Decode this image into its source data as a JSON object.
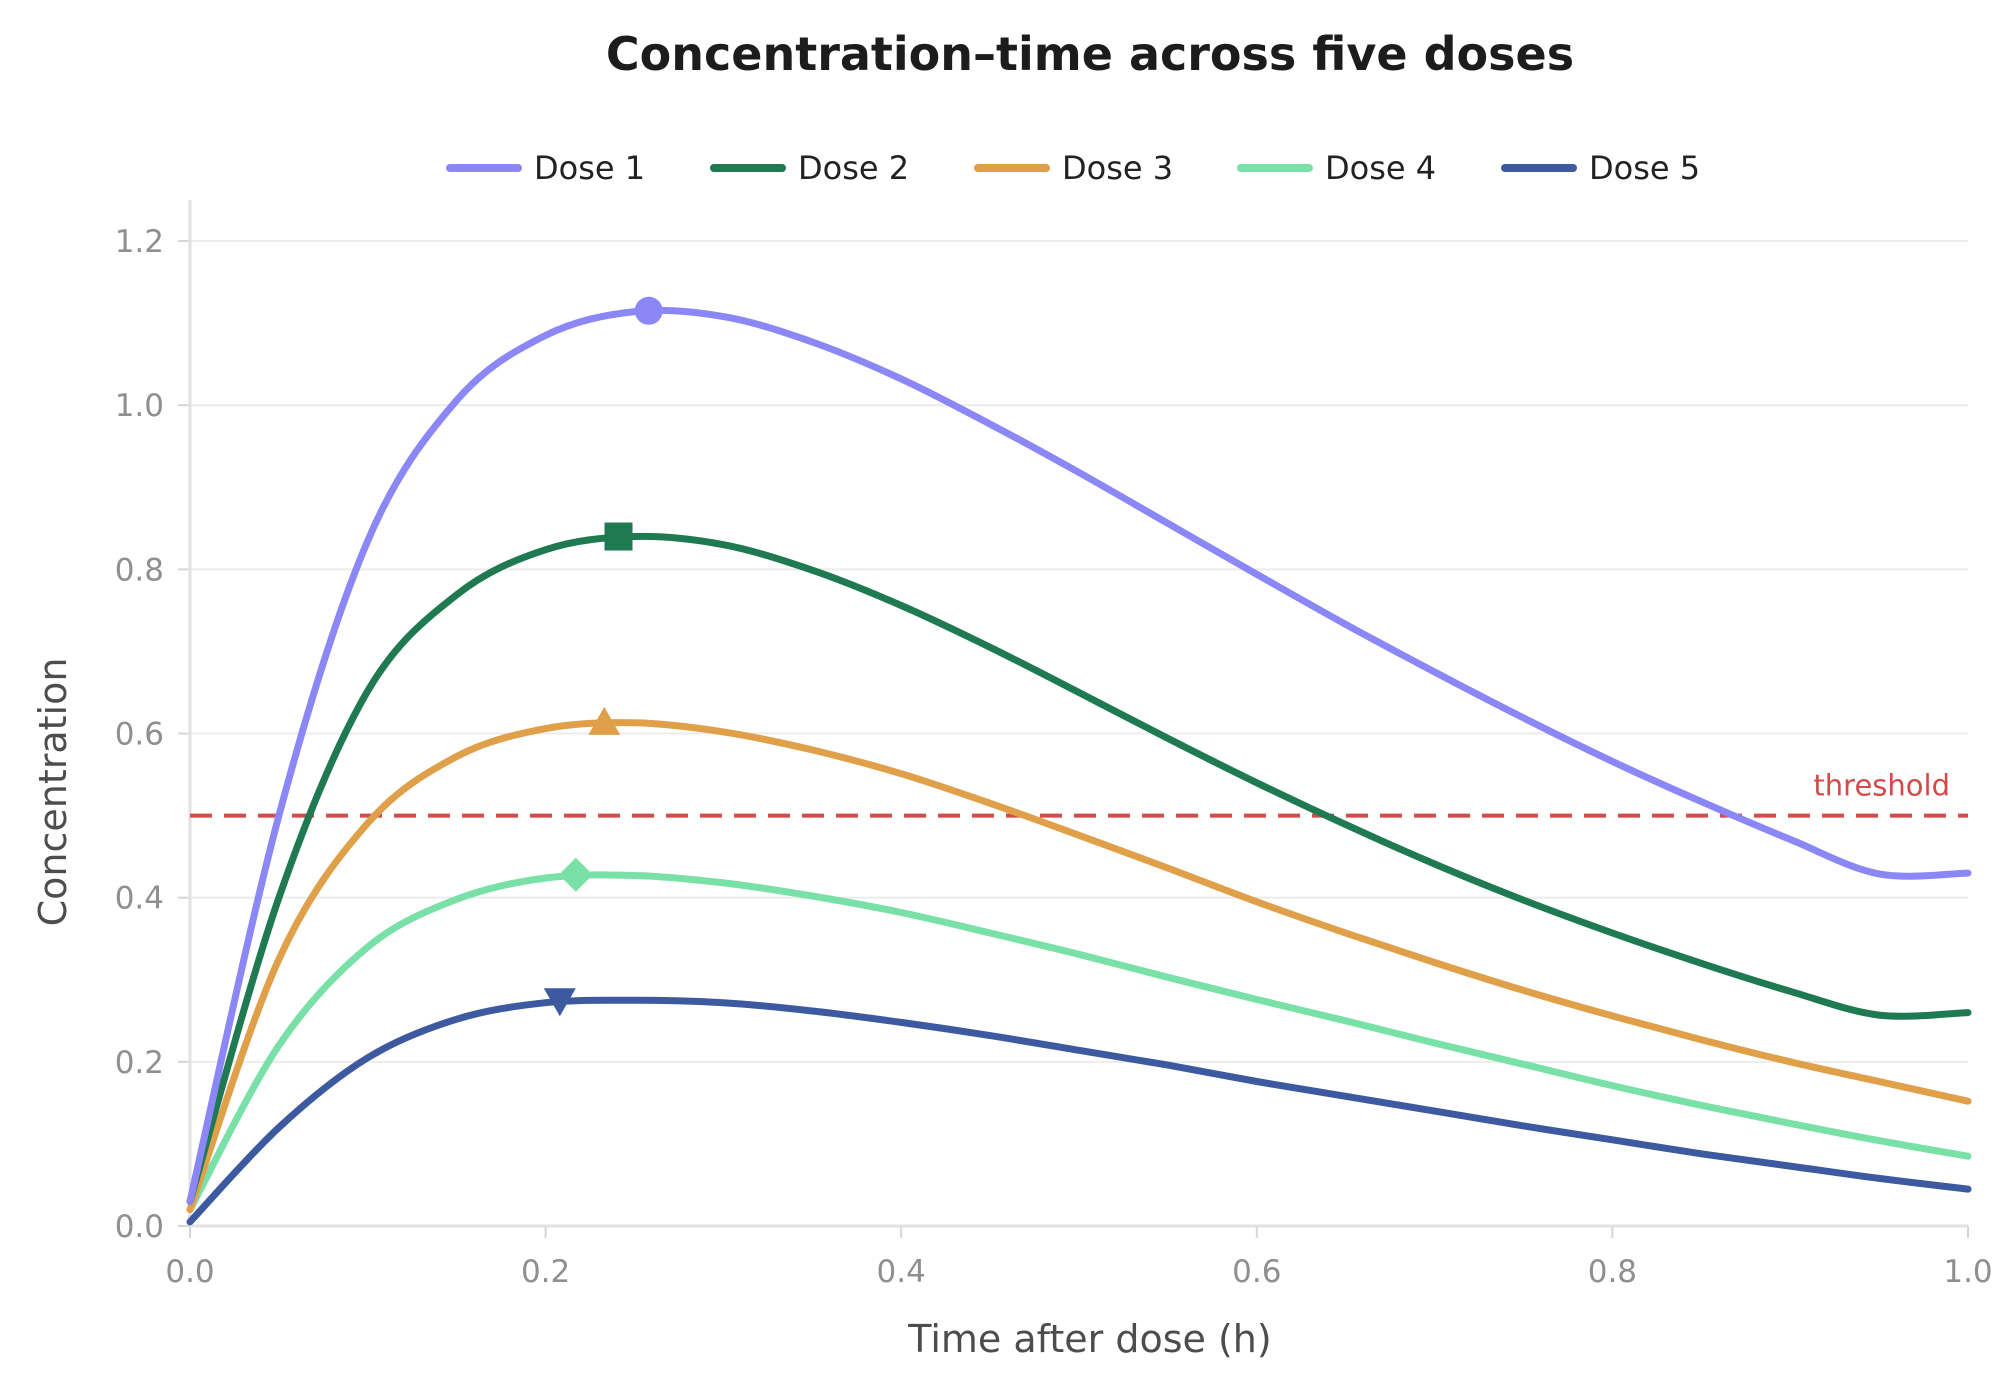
{
  "chart_data": {
    "type": "line",
    "title": "Concentration–time across five doses",
    "xlabel": "Time after dose (h)",
    "ylabel": "Concentration",
    "xlim": [
      0.0,
      1.0
    ],
    "ylim": [
      0.0,
      1.25
    ],
    "xticks": [
      "0.0",
      "0.2",
      "0.4",
      "0.6",
      "0.8",
      "1.0"
    ],
    "yticks": [
      "0.0",
      "0.2",
      "0.4",
      "0.6",
      "0.8",
      "1.0",
      "1.2"
    ],
    "grid": "horizontal",
    "legend_position": "top-center",
    "x": [
      0.0,
      0.05,
      0.1,
      0.15,
      0.2,
      0.25,
      0.3,
      0.35,
      0.4,
      0.45,
      0.5,
      0.55,
      0.6,
      0.65,
      0.7,
      0.75,
      0.8,
      0.85,
      0.9,
      0.95,
      1.0
    ],
    "series": [
      {
        "name": "Dose 1",
        "color": "#8c87f7",
        "marker": "circle",
        "peak": [
          0.258,
          1.115
        ],
        "values": [
          0.03,
          0.5,
          0.835,
          1.006,
          1.085,
          1.114,
          1.108,
          1.077,
          1.032,
          0.977,
          0.918,
          0.856,
          0.794,
          0.733,
          0.675,
          0.619,
          0.566,
          0.517,
          0.471,
          0.429,
          0.43
        ]
      },
      {
        "name": "Dose 2",
        "color": "#1f7a52",
        "marker": "square",
        "peak": [
          0.241,
          0.84
        ],
        "values": [
          0.03,
          0.4,
          0.652,
          0.769,
          0.824,
          0.84,
          0.83,
          0.799,
          0.756,
          0.705,
          0.65,
          0.594,
          0.54,
          0.489,
          0.441,
          0.397,
          0.357,
          0.32,
          0.286,
          0.257,
          0.26
        ]
      },
      {
        "name": "Dose 3",
        "color": "#e0a04a",
        "marker": "triangle-up",
        "peak": [
          0.233,
          0.613
        ],
        "values": [
          0.02,
          0.325,
          0.491,
          0.572,
          0.606,
          0.613,
          0.602,
          0.58,
          0.551,
          0.515,
          0.476,
          0.436,
          0.395,
          0.357,
          0.321,
          0.287,
          0.256,
          0.227,
          0.2,
          0.176,
          0.152
        ]
      },
      {
        "name": "Dose 4",
        "color": "#79e0a8",
        "marker": "diamond",
        "peak": [
          0.217,
          0.428
        ],
        "values": [
          0.02,
          0.22,
          0.34,
          0.398,
          0.424,
          0.427,
          0.418,
          0.402,
          0.382,
          0.357,
          0.331,
          0.303,
          0.276,
          0.25,
          0.223,
          0.197,
          0.171,
          0.147,
          0.125,
          0.104,
          0.085
        ]
      },
      {
        "name": "Dose 5",
        "color": "#3d5aa0",
        "marker": "triangle-down",
        "peak": [
          0.208,
          0.275
        ],
        "values": [
          0.005,
          0.12,
          0.205,
          0.252,
          0.272,
          0.275,
          0.272,
          0.262,
          0.248,
          0.232,
          0.214,
          0.196,
          0.176,
          0.158,
          0.14,
          0.122,
          0.105,
          0.088,
          0.073,
          0.058,
          0.045
        ]
      }
    ],
    "threshold": {
      "label": "threshold",
      "value": 0.5,
      "color": "#d44a4a"
    }
  }
}
